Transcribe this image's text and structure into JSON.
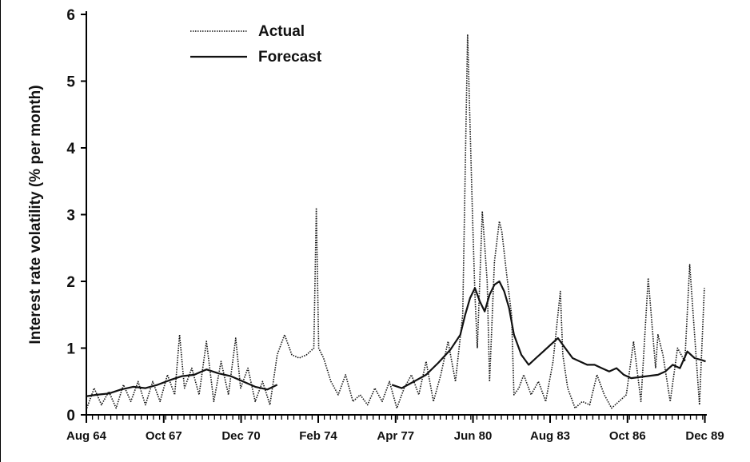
{
  "chart_data": {
    "type": "line",
    "ylabel": "Interest rate volatility (% per month)",
    "xlabel": "",
    "ylim": [
      0,
      6
    ],
    "yticks": [
      0,
      1,
      2,
      3,
      4,
      5,
      6
    ],
    "xlim": [
      1964.58,
      1990.0
    ],
    "xtick_labels": [
      {
        "label": "Aug 64",
        "x": 1964.58
      },
      {
        "label": "Oct 67",
        "x": 1967.75
      },
      {
        "label": "Dec 70",
        "x": 1970.92
      },
      {
        "label": "Feb 74",
        "x": 1974.08
      },
      {
        "label": "Apr 77",
        "x": 1977.25
      },
      {
        "label": "Jun 80",
        "x": 1980.42
      },
      {
        "label": "Aug 83",
        "x": 1983.58
      },
      {
        "label": "Oct 86",
        "x": 1986.75
      },
      {
        "label": "Dec 89",
        "x": 1989.92
      }
    ],
    "legend": {
      "position": "top-left"
    },
    "series": [
      {
        "name": "Actual",
        "style": "dotted",
        "x": [
          1964.6,
          1964.9,
          1965.2,
          1965.5,
          1965.8,
          1966.1,
          1966.4,
          1966.7,
          1967.0,
          1967.3,
          1967.6,
          1967.9,
          1968.2,
          1968.4,
          1968.6,
          1968.9,
          1969.2,
          1969.5,
          1969.8,
          1970.1,
          1970.4,
          1970.7,
          1970.9,
          1971.2,
          1971.5,
          1971.8,
          1972.1,
          1972.4,
          1972.7,
          1973.0,
          1973.3,
          1973.6,
          1973.9,
          1974.0,
          1974.1,
          1974.3,
          1974.6,
          1974.9,
          1975.2,
          1975.5,
          1975.8,
          1976.1,
          1976.4,
          1976.7,
          1977.0,
          1977.3,
          1977.6,
          1977.9,
          1978.2,
          1978.5,
          1978.8,
          1979.1,
          1979.4,
          1979.7,
          1980.0,
          1980.2,
          1980.4,
          1980.5,
          1980.6,
          1980.8,
          1981.0,
          1981.1,
          1981.3,
          1981.5,
          1981.6,
          1981.8,
          1982.0,
          1982.1,
          1982.3,
          1982.5,
          1982.8,
          1983.1,
          1983.4,
          1983.7,
          1984.0,
          1984.1,
          1984.3,
          1984.6,
          1984.9,
          1985.2,
          1985.5,
          1985.8,
          1986.1,
          1986.4,
          1986.7,
          1987.0,
          1987.3,
          1987.6,
          1987.9,
          1988.0,
          1988.2,
          1988.5,
          1988.8,
          1989.1,
          1989.3,
          1989.5,
          1989.7,
          1989.9
        ],
        "values": [
          0.1,
          0.4,
          0.15,
          0.35,
          0.1,
          0.45,
          0.2,
          0.5,
          0.15,
          0.5,
          0.2,
          0.6,
          0.3,
          1.2,
          0.4,
          0.7,
          0.3,
          1.1,
          0.2,
          0.8,
          0.3,
          1.15,
          0.4,
          0.7,
          0.2,
          0.5,
          0.15,
          0.9,
          1.2,
          0.9,
          0.85,
          0.9,
          1.0,
          3.1,
          1.0,
          0.85,
          0.5,
          0.3,
          0.6,
          0.2,
          0.3,
          0.15,
          0.4,
          0.2,
          0.5,
          0.1,
          0.4,
          0.6,
          0.3,
          0.8,
          0.2,
          0.6,
          1.1,
          0.5,
          1.5,
          5.7,
          3.0,
          1.8,
          1.0,
          3.05,
          2.0,
          0.5,
          2.3,
          2.9,
          2.75,
          2.1,
          1.5,
          0.3,
          0.4,
          0.6,
          0.3,
          0.5,
          0.2,
          0.8,
          1.85,
          0.9,
          0.4,
          0.1,
          0.2,
          0.15,
          0.6,
          0.3,
          0.1,
          0.2,
          0.3,
          1.1,
          0.2,
          2.05,
          0.7,
          1.2,
          0.9,
          0.2,
          1.0,
          0.8,
          2.25,
          1.2,
          0.15,
          1.9
        ]
      },
      {
        "name": "Forecast",
        "style": "solid",
        "x": [
          1964.6,
          1965.0,
          1965.5,
          1966.0,
          1966.5,
          1967.0,
          1967.5,
          1968.0,
          1968.5,
          1969.0,
          1969.5,
          1970.0,
          1970.5,
          1971.0,
          1971.5,
          1972.0,
          1972.4,
          1977.1,
          1977.5,
          1978.0,
          1978.5,
          1979.0,
          1979.5,
          1979.9,
          1980.1,
          1980.3,
          1980.5,
          1980.7,
          1980.9,
          1981.1,
          1981.3,
          1981.5,
          1981.7,
          1981.9,
          1982.1,
          1982.4,
          1982.7,
          1983.0,
          1983.3,
          1983.6,
          1983.9,
          1984.2,
          1984.5,
          1984.8,
          1985.1,
          1985.4,
          1985.7,
          1986.0,
          1986.3,
          1986.6,
          1986.9,
          1988.0,
          1988.3,
          1988.6,
          1988.9,
          1989.2,
          1989.5,
          1989.8,
          1989.95
        ],
        "values": [
          0.28,
          0.3,
          0.32,
          0.38,
          0.42,
          0.4,
          0.45,
          0.52,
          0.58,
          0.6,
          0.68,
          0.62,
          0.58,
          0.5,
          0.42,
          0.38,
          0.45,
          0.45,
          0.4,
          0.5,
          0.6,
          0.78,
          0.98,
          1.2,
          1.5,
          1.75,
          1.9,
          1.7,
          1.55,
          1.8,
          1.95,
          2.0,
          1.85,
          1.6,
          1.2,
          0.9,
          0.75,
          0.85,
          0.95,
          1.05,
          1.15,
          1.0,
          0.85,
          0.8,
          0.75,
          0.75,
          0.7,
          0.65,
          0.7,
          0.6,
          0.55,
          0.6,
          0.65,
          0.75,
          0.7,
          0.95,
          0.85,
          0.82,
          0.8
        ]
      }
    ]
  }
}
